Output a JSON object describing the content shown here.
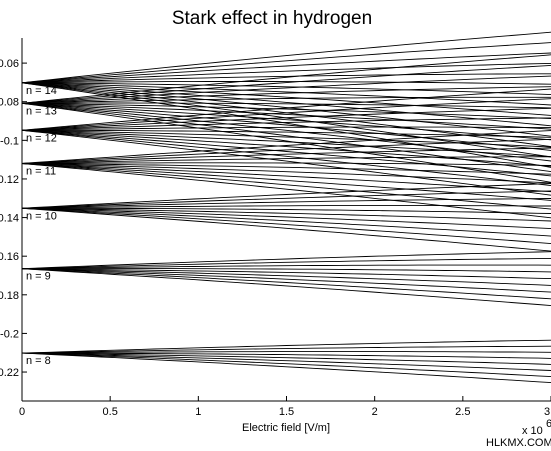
{
  "chart_data": {
    "type": "line",
    "title": "Stark effect in hydrogen",
    "xlabel": "Electric field [V/m]",
    "ylabel": "",
    "x_multiplier": "x 10",
    "x_exponent": "6",
    "xlim": [
      0,
      3000000
    ],
    "ylim": [
      -0.235,
      -0.047
    ],
    "grid": false,
    "legend": "none",
    "x_ticks": [
      {
        "value": 0,
        "label": "0"
      },
      {
        "value": 500000,
        "label": "0.5"
      },
      {
        "value": 1000000,
        "label": "1"
      },
      {
        "value": 1500000,
        "label": "1.5"
      },
      {
        "value": 2000000,
        "label": "2"
      },
      {
        "value": 2500000,
        "label": "2.5"
      },
      {
        "value": 3000000,
        "label": "3"
      }
    ],
    "y_ticks": [
      {
        "value": -0.06,
        "label": "-0.06"
      },
      {
        "value": -0.08,
        "label": "-0.08"
      },
      {
        "value": -0.1,
        "label": "-0.1"
      },
      {
        "value": -0.12,
        "label": "-0.12"
      },
      {
        "value": -0.14,
        "label": "-0.14"
      },
      {
        "value": -0.16,
        "label": "-0.16"
      },
      {
        "value": -0.18,
        "label": "-0.18"
      },
      {
        "value": -0.2,
        "label": "-0.2"
      },
      {
        "value": -0.22,
        "label": "-0.22"
      }
    ],
    "manifolds": [
      {
        "label": "n = 8",
        "n": 8,
        "e0": -0.2102,
        "end_spread": [
          -0.2012,
          -0.2232
        ]
      },
      {
        "label": "n = 9",
        "n": 9,
        "e0": -0.1665,
        "end_spread": [
          -0.1551,
          -0.183
        ]
      },
      {
        "label": "n = 10",
        "n": 10,
        "e0": -0.1352,
        "end_spread": [
          -0.1195,
          -0.1545
        ]
      },
      {
        "label": "n = 11",
        "n": 11,
        "e0": -0.112,
        "end_spread": [
          -0.0918,
          -0.137
        ]
      },
      {
        "label": "n = 12",
        "n": 12,
        "e0": -0.0948,
        "end_spread": [
          -0.07,
          -0.125
        ]
      },
      {
        "label": "n = 13",
        "n": 13,
        "e0": -0.0808,
        "end_spread": [
          -0.052,
          -0.118
        ]
      },
      {
        "label": "n = 14",
        "n": 14,
        "e0": -0.0702,
        "end_spread": [
          -0.04,
          -0.11
        ]
      }
    ]
  },
  "watermark": "HLKMX.COM"
}
